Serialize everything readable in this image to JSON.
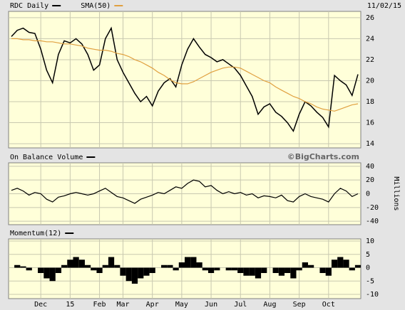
{
  "chart_data": [
    {
      "type": "line",
      "date": "11/02/15",
      "watermark": "©BigCharts.com",
      "series": [
        {
          "name": "RDC Daily",
          "color": "#000000",
          "values": [
            24.2,
            24.8,
            25.0,
            24.6,
            24.5,
            23.0,
            21.0,
            19.8,
            22.5,
            23.8,
            23.6,
            24.0,
            23.5,
            22.5,
            21.0,
            21.5,
            24.0,
            25.0,
            22.0,
            20.8,
            19.8,
            18.8,
            18.0,
            18.5,
            17.6,
            19.0,
            19.8,
            20.2,
            19.4,
            21.5,
            23.0,
            24.0,
            23.2,
            22.5,
            22.2,
            21.8,
            22.0,
            21.6,
            21.2,
            20.5,
            19.5,
            18.5,
            16.8,
            17.5,
            17.8,
            17.0,
            16.6,
            16.0,
            15.2,
            16.8,
            18.0,
            17.6,
            17.0,
            16.5,
            15.6,
            20.5,
            20.0,
            19.6,
            18.6,
            20.6
          ]
        },
        {
          "name": "SMA(50)",
          "color": "#e0a040",
          "values": [
            24.0,
            24.0,
            23.9,
            23.9,
            23.8,
            23.8,
            23.7,
            23.7,
            23.6,
            23.5,
            23.5,
            23.4,
            23.3,
            23.1,
            23.0,
            22.9,
            22.9,
            22.8,
            22.6,
            22.5,
            22.3,
            22.0,
            21.8,
            21.5,
            21.2,
            20.8,
            20.5,
            20.1,
            19.8,
            19.7,
            19.7,
            19.9,
            20.2,
            20.5,
            20.8,
            21.0,
            21.2,
            21.3,
            21.3,
            21.2,
            20.9,
            20.6,
            20.3,
            20.0,
            19.8,
            19.4,
            19.1,
            18.8,
            18.5,
            18.3,
            18.0,
            17.8,
            17.5,
            17.3,
            17.2,
            17.1,
            17.3,
            17.5,
            17.7,
            17.8
          ]
        }
      ],
      "ylim": [
        13.6,
        26.6
      ],
      "yticks": [
        14,
        16,
        18,
        20,
        22,
        24,
        26
      ],
      "grid": true
    },
    {
      "type": "line",
      "ylabel": "Millions",
      "series": [
        {
          "name": "On Balance Volume",
          "color": "#000000",
          "values": [
            5,
            8,
            4,
            -2,
            2,
            0,
            -8,
            -12,
            -5,
            -3,
            0,
            2,
            0,
            -2,
            0,
            4,
            8,
            2,
            -4,
            -6,
            -10,
            -14,
            -8,
            -5,
            -2,
            2,
            0,
            5,
            10,
            8,
            15,
            20,
            18,
            10,
            12,
            5,
            0,
            3,
            0,
            2,
            -2,
            0,
            -6,
            -3,
            -4,
            -6,
            -2,
            -10,
            -12,
            -4,
            0,
            -4,
            -6,
            -8,
            -12,
            0,
            8,
            4,
            -4,
            0
          ]
        }
      ],
      "ylim": [
        -45,
        45
      ],
      "yticks": [
        40,
        20,
        0,
        -20,
        -40
      ],
      "grid": true
    },
    {
      "type": "bar",
      "series": [
        {
          "name": "Momentum(12)",
          "color": "#000000",
          "values": [
            0,
            1,
            0.5,
            -1,
            0,
            -2,
            -4,
            -5,
            -2,
            1,
            3,
            4,
            3,
            1,
            -1,
            -2,
            1,
            4,
            1,
            -3,
            -5,
            -6,
            -4,
            -3,
            -2,
            0,
            1,
            1,
            -1,
            2,
            4,
            4,
            2,
            -1,
            -2,
            -1,
            0,
            -1,
            -1,
            -2,
            -3,
            -3,
            -4,
            -2,
            0,
            -2,
            -3,
            -2,
            -4,
            -1,
            2,
            1,
            0,
            -2,
            -3,
            3,
            4,
            3,
            -1,
            1
          ]
        }
      ],
      "ylim": [
        -11.6,
        10.8
      ],
      "yticks": [
        10,
        5,
        0,
        -5,
        -10
      ],
      "grid": true,
      "xticks": [
        {
          "value": 5,
          "label": "Dec"
        },
        {
          "value": 10,
          "label": "15"
        },
        {
          "value": 15,
          "label": "Feb"
        },
        {
          "value": 19,
          "label": "Mar"
        },
        {
          "value": 24,
          "label": "Apr"
        },
        {
          "value": 29,
          "label": "May"
        },
        {
          "value": 34,
          "label": "Jun"
        },
        {
          "value": 39,
          "label": "Jul"
        },
        {
          "value": 44,
          "label": "Aug"
        },
        {
          "value": 49,
          "label": "Sep"
        },
        {
          "value": 54,
          "label": "Oct"
        }
      ]
    }
  ]
}
